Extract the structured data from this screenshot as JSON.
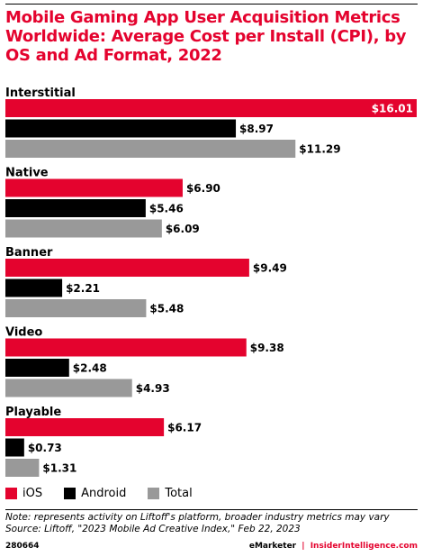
{
  "title": "Mobile Gaming App User Acquisition Metrics Worldwide: Average Cost per Install (CPI), by OS and Ad Format, 2022",
  "colors": {
    "accent": "#e4032e",
    "ios": "#e4032e",
    "android": "#000000",
    "total": "#999999"
  },
  "chart_data": {
    "type": "bar",
    "orientation": "horizontal",
    "categories": [
      "Interstitial",
      "Native",
      "Banner",
      "Video",
      "Playable"
    ],
    "series": [
      {
        "name": "iOS",
        "values": [
          16.01,
          6.9,
          9.49,
          9.38,
          6.17
        ],
        "labels": [
          "$16.01",
          "$6.90",
          "$9.49",
          "$9.38",
          "$6.17"
        ]
      },
      {
        "name": "Android",
        "values": [
          8.97,
          5.46,
          2.21,
          2.48,
          0.73
        ],
        "labels": [
          "$8.97",
          "$5.46",
          "$2.21",
          "$2.48",
          "$0.73"
        ]
      },
      {
        "name": "Total",
        "values": [
          11.29,
          6.09,
          5.48,
          4.93,
          1.31
        ],
        "labels": [
          "$11.29",
          "$6.09",
          "$5.48",
          "$4.93",
          "$1.31"
        ]
      }
    ],
    "xlim": [
      0,
      16.01
    ],
    "grid": false,
    "legend_position": "bottom-left"
  },
  "legend": {
    "ios": "iOS",
    "android": "Android",
    "total": "Total"
  },
  "note": "Note: represents activity on Liftoff's platform, broader industry metrics may vary",
  "source": "Source: Liftoff, \"2023 Mobile Ad Creative Index,\" Feb 22, 2023",
  "footer": {
    "id": "280664",
    "brand_left": "eMarketer",
    "separator": "|",
    "brand_right": "InsiderIntelligence.com"
  }
}
